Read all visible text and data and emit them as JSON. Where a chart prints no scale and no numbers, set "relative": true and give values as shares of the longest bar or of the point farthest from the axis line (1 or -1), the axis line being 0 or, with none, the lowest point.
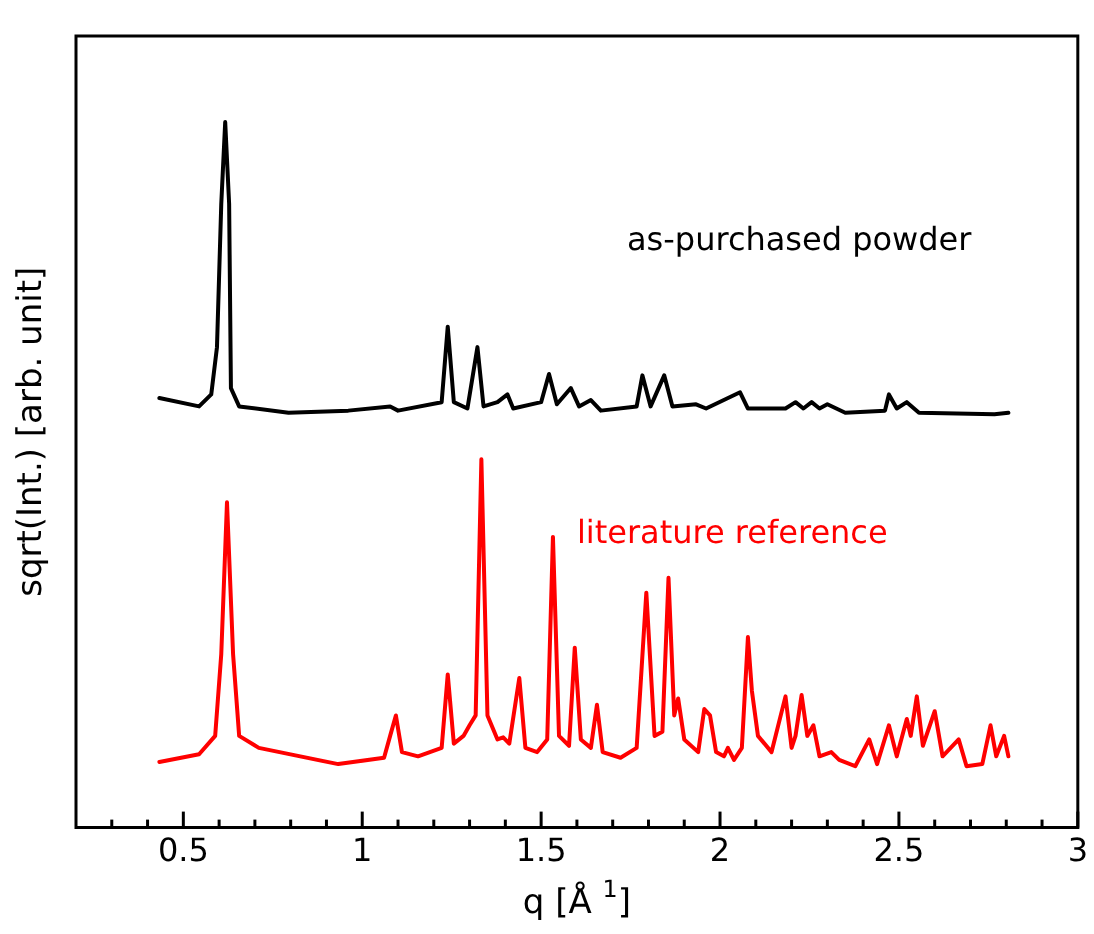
{
  "chart_data": {
    "type": "line",
    "xlabel": "q [Å $^{1}$]",
    "ylabel": "sqrt(Int.) [arb. unit]",
    "relative": true,
    "grid": false,
    "legend": false,
    "marker": "none",
    "line_style": "solid",
    "xlim": [
      0.2,
      3
    ],
    "xticks": [
      {
        "value": 0.3,
        "label": null
      },
      {
        "value": 0.4,
        "label": null
      },
      0.5,
      {
        "value": 0.6,
        "label": null
      },
      {
        "value": 0.7,
        "label": null
      },
      {
        "value": 0.8,
        "label": null
      },
      {
        "value": 0.9,
        "label": null
      },
      1,
      {
        "value": 1.1,
        "label": null
      },
      {
        "value": 1.2,
        "label": null
      },
      {
        "value": 1.3,
        "label": null
      },
      {
        "value": 1.4,
        "label": null
      },
      1.5,
      {
        "value": 1.6,
        "label": null
      },
      {
        "value": 1.7,
        "label": null
      },
      {
        "value": 1.8,
        "label": null
      },
      {
        "value": 1.9,
        "label": null
      },
      2,
      {
        "value": 2.1,
        "label": null
      },
      {
        "value": 2.2,
        "label": null
      },
      {
        "value": 2.3,
        "label": null
      },
      {
        "value": 2.4,
        "label": null
      },
      2.5,
      {
        "value": 2.6,
        "label": null
      },
      {
        "value": 2.7,
        "label": null
      },
      {
        "value": 2.8,
        "label": null
      },
      {
        "value": 2.9,
        "label": null
      },
      3
    ],
    "series": [
      {
        "name": "as-purchased powder",
        "color": "#000000",
        "x": [
          0.433,
          0.544,
          0.578,
          0.594,
          0.606,
          0.617,
          0.628,
          0.633,
          0.656,
          0.794,
          0.961,
          1.078,
          1.1,
          1.222,
          1.239,
          1.256,
          1.294,
          1.322,
          1.339,
          1.378,
          1.406,
          1.422,
          1.5,
          1.522,
          1.544,
          1.583,
          1.606,
          1.639,
          1.667,
          1.767,
          1.783,
          1.806,
          1.844,
          1.867,
          1.933,
          1.961,
          2.056,
          2.078,
          2.183,
          2.211,
          2.233,
          2.256,
          2.278,
          2.3,
          2.35,
          2.461,
          2.472,
          2.494,
          2.522,
          2.556,
          2.767,
          2.806
        ],
        "values": [
          0.609,
          0.597,
          0.614,
          0.681,
          0.884,
          1,
          0.884,
          0.623,
          0.597,
          0.588,
          0.591,
          0.597,
          0.591,
          0.603,
          0.71,
          0.603,
          0.594,
          0.681,
          0.597,
          0.603,
          0.614,
          0.594,
          0.603,
          0.643,
          0.6,
          0.623,
          0.597,
          0.606,
          0.591,
          0.597,
          0.641,
          0.597,
          0.641,
          0.597,
          0.6,
          0.594,
          0.617,
          0.594,
          0.594,
          0.603,
          0.594,
          0.603,
          0.594,
          0.6,
          0.588,
          0.591,
          0.614,
          0.594,
          0.603,
          0.588,
          0.586,
          0.588
        ]
      },
      {
        "name": "literature reference",
        "color": "#ff0000",
        "x": [
          0.433,
          0.544,
          0.589,
          0.606,
          0.622,
          0.639,
          0.656,
          0.711,
          0.933,
          1.061,
          1.078,
          1.094,
          1.111,
          1.156,
          1.222,
          1.239,
          1.256,
          1.283,
          1.3,
          1.317,
          1.333,
          1.35,
          1.378,
          1.394,
          1.411,
          1.439,
          1.456,
          1.489,
          1.517,
          1.533,
          1.55,
          1.578,
          1.594,
          1.611,
          1.639,
          1.656,
          1.672,
          1.722,
          1.767,
          1.794,
          1.817,
          1.839,
          1.856,
          1.872,
          1.883,
          1.9,
          1.939,
          1.956,
          1.972,
          1.989,
          2.011,
          2.022,
          2.039,
          2.061,
          2.078,
          2.089,
          2.106,
          2.144,
          2.183,
          2.2,
          2.211,
          2.228,
          2.244,
          2.261,
          2.278,
          2.311,
          2.333,
          2.378,
          2.417,
          2.439,
          2.472,
          2.494,
          2.522,
          2.533,
          2.55,
          2.567,
          2.6,
          2.622,
          2.667,
          2.689,
          2.733,
          2.756,
          2.772,
          2.794,
          2.806
        ],
        "values": [
          0.093,
          0.104,
          0.13,
          0.246,
          0.461,
          0.246,
          0.13,
          0.113,
          0.09,
          0.099,
          0.13,
          0.159,
          0.107,
          0.101,
          0.113,
          0.217,
          0.119,
          0.13,
          0.145,
          0.159,
          0.522,
          0.159,
          0.125,
          0.128,
          0.119,
          0.212,
          0.113,
          0.107,
          0.125,
          0.412,
          0.13,
          0.116,
          0.255,
          0.125,
          0.113,
          0.174,
          0.107,
          0.099,
          0.113,
          0.333,
          0.13,
          0.136,
          0.354,
          0.159,
          0.183,
          0.125,
          0.107,
          0.168,
          0.159,
          0.107,
          0.101,
          0.113,
          0.096,
          0.113,
          0.27,
          0.194,
          0.13,
          0.107,
          0.186,
          0.113,
          0.13,
          0.188,
          0.13,
          0.145,
          0.101,
          0.107,
          0.096,
          0.087,
          0.125,
          0.09,
          0.145,
          0.101,
          0.154,
          0.13,
          0.186,
          0.116,
          0.165,
          0.101,
          0.125,
          0.087,
          0.09,
          0.145,
          0.101,
          0.13,
          0.101
        ]
      }
    ]
  }
}
